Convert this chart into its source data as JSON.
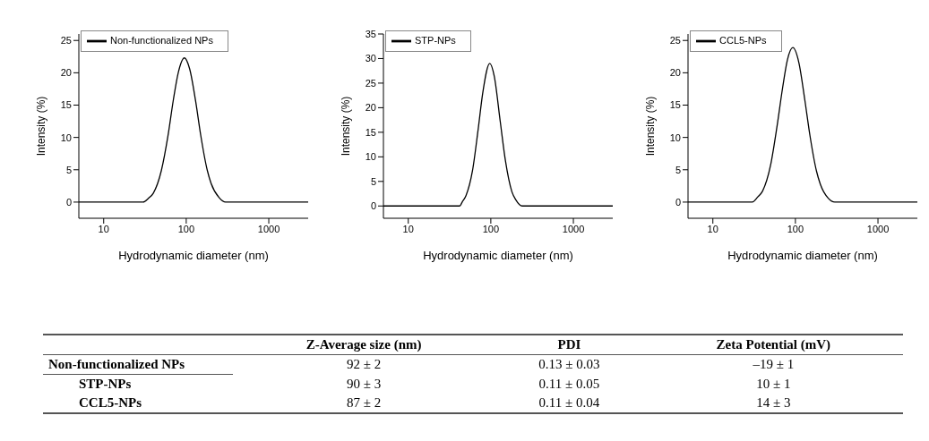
{
  "chart_data": [
    {
      "type": "line",
      "xlabel": "Hydrodynamic diameter (nm)",
      "ylabel": "Intensity (%)",
      "log": "x",
      "xlim": [
        5,
        3000
      ],
      "xticks": [
        10,
        100,
        1000
      ],
      "ylim": [
        -2.5,
        26
      ],
      "yticks": [
        0,
        5,
        10,
        15,
        20,
        25
      ],
      "legend": "top left",
      "marker": "none",
      "line_style": "solid",
      "x": [
        5,
        30,
        35,
        40,
        50,
        60,
        70,
        80,
        95,
        110,
        130,
        150,
        180,
        200,
        250,
        300,
        3000
      ],
      "series": [
        {
          "name": "Non-functionalized NPs",
          "color": "#000000",
          "values": [
            0,
            0,
            0.6,
            1.4,
            4.9,
            10.2,
            15.9,
            20,
            22.3,
            20.6,
            15.6,
            10.3,
            4.9,
            2.9,
            0.7,
            0,
            0
          ]
        }
      ]
    },
    {
      "type": "line",
      "xlabel": "Hydrodynamic diameter (nm)",
      "ylabel": "Intensity (%)",
      "log": "x",
      "xlim": [
        5,
        3000
      ],
      "xticks": [
        10,
        100,
        1000
      ],
      "ylim": [
        -2.5,
        35
      ],
      "yticks": [
        0,
        5,
        10,
        15,
        20,
        25,
        30,
        35
      ],
      "legend": "top left",
      "marker": "none",
      "line_style": "solid",
      "x": [
        5,
        42,
        45,
        50,
        60,
        70,
        80,
        97,
        110,
        130,
        150,
        180,
        200,
        240,
        3000
      ],
      "series": [
        {
          "name": "STP-NPs",
          "color": "#000000",
          "values": [
            0,
            0,
            0.8,
            2.1,
            7.2,
            15.4,
            23.1,
            29,
            26.4,
            17.2,
            9.3,
            2.9,
            1.3,
            0,
            0
          ]
        }
      ]
    },
    {
      "type": "line",
      "xlabel": "Hydrodynamic diameter (nm)",
      "ylabel": "Intensity (%)",
      "log": "x",
      "xlim": [
        5,
        3000
      ],
      "xticks": [
        10,
        100,
        1000
      ],
      "ylim": [
        -2.5,
        26
      ],
      "yticks": [
        0,
        5,
        10,
        15,
        20,
        25
      ],
      "legend": "top left",
      "marker": "none",
      "line_style": "solid",
      "x": [
        5,
        30,
        35,
        40,
        50,
        60,
        70,
        80,
        93,
        110,
        130,
        150,
        180,
        200,
        250,
        300,
        3000
      ],
      "series": [
        {
          "name": "CCL5-NPs",
          "color": "#000000",
          "values": [
            0,
            0,
            0.8,
            1.7,
            5.7,
            11.8,
            17.7,
            22,
            23.9,
            21.6,
            15.8,
            10.3,
            4.8,
            2.8,
            0.6,
            0,
            0
          ]
        }
      ]
    },
    {
      "type": "other",
      "annotations": [
        "Z-Average size (nm)",
        "PDI",
        "Zeta Potential (mV)",
        "Non-functionalized NPs",
        "92 ± 2",
        "0.13 ± 0.03",
        "–19 ± 1",
        "STP-NPs",
        "90 ± 3",
        "0.11 ± 0.05",
        "10 ± 1",
        "CCL5-NPs",
        "87 ± 2",
        "0.11 ± 0.04",
        "14 ± 3"
      ]
    }
  ]
}
